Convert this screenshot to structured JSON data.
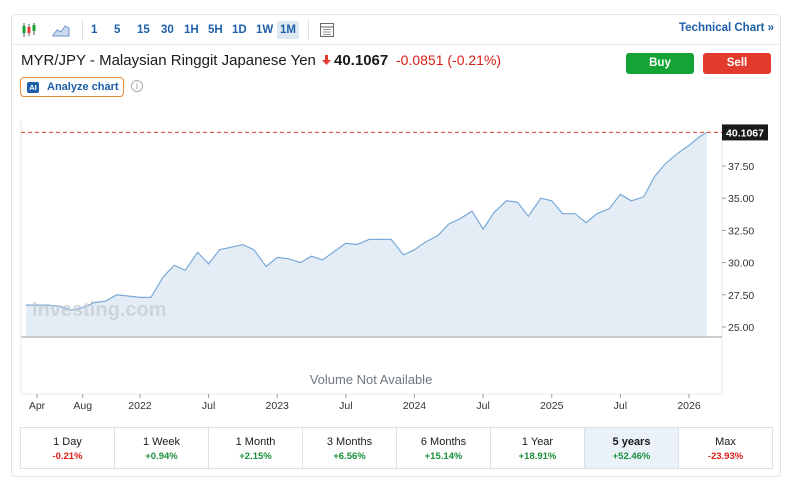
{
  "toolbar": {
    "timeframes": [
      "1",
      "5",
      "15",
      "30",
      "1H",
      "5H",
      "1D",
      "1W",
      "1M"
    ],
    "active_timeframe": "1M",
    "technical_chart_label": "Technical Chart »"
  },
  "header": {
    "title": "MYR/JPY - Malaysian Ringgit Japanese Yen",
    "price": "40.1067",
    "change": "-0.0851 (-0.21%)",
    "buy_label": "Buy",
    "sell_label": "Sell",
    "analyze_badge": "AI",
    "analyze_label": "Analyze chart",
    "info_symbol": "i"
  },
  "colors": {
    "up": "#14a335",
    "down": "#e23b2e",
    "line": "#7aa9d6",
    "area": "#e4edf6",
    "accent": "#1d5fa8"
  },
  "chart_data": {
    "type": "area",
    "watermark": "Investing.com",
    "volume_note": "Volume Not Available",
    "last_value_label": "40.1067",
    "x_labels": [
      {
        "label": "Apr",
        "t": 2021.25
      },
      {
        "label": "Aug",
        "t": 2021.583
      },
      {
        "label": "2022",
        "t": 2022.0
      },
      {
        "label": "Jul",
        "t": 2022.5
      },
      {
        "label": "2023",
        "t": 2023.0
      },
      {
        "label": "Jul",
        "t": 2023.5
      },
      {
        "label": "2024",
        "t": 2024.0
      },
      {
        "label": "Jul",
        "t": 2024.5
      },
      {
        "label": "2025",
        "t": 2025.0
      },
      {
        "label": "Jul",
        "t": 2025.5
      },
      {
        "label": "2026",
        "t": 2026.0
      }
    ],
    "y_ticks": [
      25.0,
      27.5,
      30.0,
      32.5,
      35.0,
      37.5
    ],
    "ylim": [
      24.2,
      40.5
    ],
    "xlim": [
      2021.17,
      2026.2
    ],
    "last_value": 40.1067,
    "points": [
      [
        2021.17,
        26.7
      ],
      [
        2021.25,
        26.7
      ],
      [
        2021.33,
        26.7
      ],
      [
        2021.42,
        26.6
      ],
      [
        2021.5,
        26.3
      ],
      [
        2021.58,
        26.5
      ],
      [
        2021.67,
        26.9
      ],
      [
        2021.75,
        27.0
      ],
      [
        2021.83,
        27.5
      ],
      [
        2021.92,
        27.4
      ],
      [
        2022.0,
        27.3
      ],
      [
        2022.08,
        27.3
      ],
      [
        2022.17,
        28.9
      ],
      [
        2022.25,
        29.8
      ],
      [
        2022.33,
        29.4
      ],
      [
        2022.42,
        30.8
      ],
      [
        2022.5,
        29.9
      ],
      [
        2022.58,
        31.0
      ],
      [
        2022.67,
        31.2
      ],
      [
        2022.75,
        31.4
      ],
      [
        2022.83,
        31.0
      ],
      [
        2022.92,
        29.7
      ],
      [
        2023.0,
        30.4
      ],
      [
        2023.08,
        30.3
      ],
      [
        2023.17,
        30.0
      ],
      [
        2023.25,
        30.5
      ],
      [
        2023.33,
        30.2
      ],
      [
        2023.42,
        30.9
      ],
      [
        2023.5,
        31.5
      ],
      [
        2023.58,
        31.4
      ],
      [
        2023.67,
        31.8
      ],
      [
        2023.75,
        31.8
      ],
      [
        2023.83,
        31.8
      ],
      [
        2023.92,
        30.6
      ],
      [
        2024.0,
        31.0
      ],
      [
        2024.08,
        31.6
      ],
      [
        2024.17,
        32.1
      ],
      [
        2024.25,
        33.0
      ],
      [
        2024.33,
        33.4
      ],
      [
        2024.42,
        34.0
      ],
      [
        2024.5,
        32.6
      ],
      [
        2024.58,
        33.9
      ],
      [
        2024.67,
        34.8
      ],
      [
        2024.75,
        34.7
      ],
      [
        2024.83,
        33.6
      ],
      [
        2024.92,
        35.0
      ],
      [
        2025.0,
        34.8
      ],
      [
        2025.08,
        33.8
      ],
      [
        2025.17,
        33.8
      ],
      [
        2025.25,
        33.1
      ],
      [
        2025.33,
        33.8
      ],
      [
        2025.42,
        34.2
      ],
      [
        2025.5,
        35.3
      ],
      [
        2025.58,
        34.8
      ],
      [
        2025.67,
        35.1
      ],
      [
        2025.75,
        36.7
      ],
      [
        2025.83,
        37.7
      ],
      [
        2025.92,
        38.5
      ],
      [
        2026.0,
        39.1
      ],
      [
        2026.08,
        39.8
      ],
      [
        2026.13,
        40.1067
      ]
    ]
  },
  "periods": [
    {
      "label": "1 Day",
      "change": "-0.21%",
      "dir": "neg"
    },
    {
      "label": "1 Week",
      "change": "+0.94%",
      "dir": "pos"
    },
    {
      "label": "1 Month",
      "change": "+2.15%",
      "dir": "pos"
    },
    {
      "label": "3 Months",
      "change": "+6.56%",
      "dir": "pos"
    },
    {
      "label": "6 Months",
      "change": "+15.14%",
      "dir": "pos"
    },
    {
      "label": "1 Year",
      "change": "+18.91%",
      "dir": "pos"
    },
    {
      "label": "5 years",
      "change": "+52.46%",
      "dir": "pos",
      "active": true
    },
    {
      "label": "Max",
      "change": "-23.93%",
      "dir": "neg"
    }
  ]
}
